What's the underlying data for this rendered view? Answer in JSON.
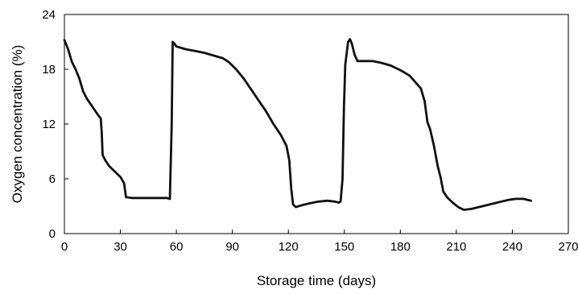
{
  "chart_data": {
    "type": "line",
    "title": "",
    "xlabel": "Storage time (days)",
    "ylabel": "Oxygen concentration (%)",
    "xlim": [
      0,
      270
    ],
    "ylim": [
      0,
      24
    ],
    "x_ticks": [
      0,
      30,
      60,
      90,
      120,
      150,
      180,
      210,
      240,
      270
    ],
    "y_ticks": [
      0,
      6,
      12,
      18,
      24
    ],
    "grid": false,
    "legend": "none",
    "line_color": "#111111",
    "series": [
      {
        "points": [
          [
            0,
            21.2
          ],
          [
            2,
            20.2
          ],
          [
            4,
            18.8
          ],
          [
            6,
            18.0
          ],
          [
            8,
            17.0
          ],
          [
            10,
            15.6
          ],
          [
            12,
            14.8
          ],
          [
            14,
            14.2
          ],
          [
            16,
            13.6
          ],
          [
            18,
            13.0
          ],
          [
            19.5,
            12.6
          ],
          [
            20,
            11.0
          ],
          [
            20.5,
            8.6
          ],
          [
            22,
            8.0
          ],
          [
            24,
            7.4
          ],
          [
            26,
            7.0
          ],
          [
            28,
            6.6
          ],
          [
            30,
            6.2
          ],
          [
            32,
            5.5
          ],
          [
            33,
            4.0
          ],
          [
            36,
            3.9
          ],
          [
            40,
            3.9
          ],
          [
            45,
            3.9
          ],
          [
            50,
            3.9
          ],
          [
            55,
            3.9
          ],
          [
            56.5,
            3.8
          ],
          [
            57.5,
            12.0
          ],
          [
            58,
            21.0
          ],
          [
            59,
            20.8
          ],
          [
            60,
            20.5
          ],
          [
            65,
            20.2
          ],
          [
            70,
            20.0
          ],
          [
            75,
            19.8
          ],
          [
            80,
            19.5
          ],
          [
            85,
            19.2
          ],
          [
            88,
            18.8
          ],
          [
            92,
            18.0
          ],
          [
            96,
            17.0
          ],
          [
            100,
            15.8
          ],
          [
            104,
            14.6
          ],
          [
            108,
            13.4
          ],
          [
            112,
            12.0
          ],
          [
            116,
            10.8
          ],
          [
            119,
            9.6
          ],
          [
            120.5,
            8.0
          ],
          [
            121.5,
            5.0
          ],
          [
            122.5,
            3.2
          ],
          [
            124,
            2.9
          ],
          [
            127,
            3.1
          ],
          [
            131,
            3.3
          ],
          [
            136,
            3.5
          ],
          [
            141,
            3.6
          ],
          [
            145,
            3.5
          ],
          [
            147,
            3.4
          ],
          [
            148,
            3.5
          ],
          [
            149,
            6.0
          ],
          [
            149.8,
            14.0
          ],
          [
            150.5,
            18.5
          ],
          [
            152,
            21.0
          ],
          [
            153,
            21.3
          ],
          [
            154,
            20.8
          ],
          [
            155.5,
            19.6
          ],
          [
            157,
            18.9
          ],
          [
            160,
            18.9
          ],
          [
            165,
            18.9
          ],
          [
            170,
            18.7
          ],
          [
            175,
            18.4
          ],
          [
            180,
            17.9
          ],
          [
            185,
            17.3
          ],
          [
            188,
            16.6
          ],
          [
            191,
            15.9
          ],
          [
            193,
            14.5
          ],
          [
            194.5,
            12.2
          ],
          [
            196,
            11.4
          ],
          [
            198,
            9.6
          ],
          [
            200,
            7.4
          ],
          [
            201.5,
            6.2
          ],
          [
            203,
            4.6
          ],
          [
            205,
            4.0
          ],
          [
            208,
            3.4
          ],
          [
            211,
            2.9
          ],
          [
            214,
            2.6
          ],
          [
            218,
            2.7
          ],
          [
            222,
            2.9
          ],
          [
            226,
            3.1
          ],
          [
            230,
            3.3
          ],
          [
            234,
            3.5
          ],
          [
            238,
            3.7
          ],
          [
            242,
            3.8
          ],
          [
            246,
            3.8
          ],
          [
            248,
            3.7
          ],
          [
            250,
            3.6
          ]
        ]
      }
    ]
  }
}
